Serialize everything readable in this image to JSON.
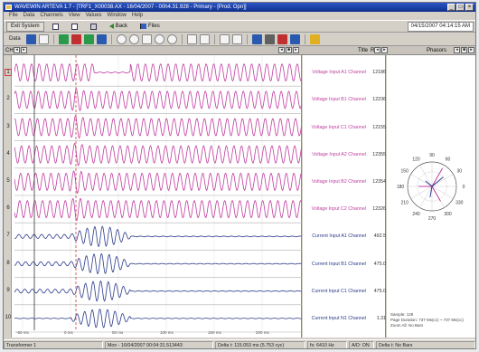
{
  "window": {
    "title": "WAVEWIN ARTEVA 1.7 - [TRF1_X00038.AX - 16/04/2007 - 00h4.31.928 - Primary - [Prod. Opn]]",
    "menu": [
      "File",
      "Data",
      "Channels",
      "View",
      "Values",
      "Window",
      "Help"
    ]
  },
  "toolbar1": {
    "exit_label": "Exit System",
    "back_label": "Back",
    "files_label": "Files",
    "date": "04/15/2007  04:14:15 AM"
  },
  "toolbar2": {
    "data_label": "Data"
  },
  "header": {
    "channel_label": "CH",
    "title_col": "Title",
    "value_col": "R",
    "phasors_label": "Phasors"
  },
  "channels": [
    {
      "number": "1",
      "title": "Voltage Input A1 Channel",
      "value": "12186",
      "type": "voltage"
    },
    {
      "number": "2",
      "title": "Voltage Input B1 Channel",
      "value": "12236",
      "type": "voltage"
    },
    {
      "number": "3",
      "title": "Voltage Input C1 Channel",
      "value": "12155",
      "type": "voltage"
    },
    {
      "number": "4",
      "title": "Voltage Input A2 Channel",
      "value": "12355",
      "type": "voltage"
    },
    {
      "number": "5",
      "title": "Voltage Input B2 Channel",
      "value": "12354",
      "type": "voltage"
    },
    {
      "number": "6",
      "title": "Voltage Input C2 Channel",
      "value": "12326",
      "type": "voltage"
    },
    {
      "number": "7",
      "title": "Current Input A1 Channel",
      "value": "492.5",
      "type": "current"
    },
    {
      "number": "8",
      "title": "Current Input B1 Channel",
      "value": "475.0",
      "type": "current"
    },
    {
      "number": "9",
      "title": "Current Input C1 Channel",
      "value": "475.0",
      "type": "current"
    },
    {
      "number": "10",
      "title": "Current Input N1 Channel",
      "value": "1.31",
      "type": "current"
    }
  ],
  "time_axis": [
    "-50 ms",
    "0 ms",
    "50 ms",
    "100 ms",
    "150 ms",
    "200 ms"
  ],
  "phasor": {
    "angles": [
      "90",
      "60",
      "30",
      "0",
      "330",
      "300",
      "270",
      "240",
      "210",
      "180",
      "150",
      "120"
    ],
    "footer1": "Sample: 128",
    "footer2": "Page Duration: 737 Ms(cc) ~ 737 Ms(cc)",
    "footer3": "Zoom All: No Bars"
  },
  "statusbar": {
    "cell1": "Transformer 1",
    "cell2": "Mon - 16/04/2007 00:04:31.513443",
    "cell3": "Delta t: 115.053 ms  (5.753 cyc)",
    "cell4": "fs: 6410 Hz",
    "cell5": "A/D: ON",
    "cell6": "Delta t: No Bars"
  },
  "colors": {
    "voltage_trace": "#c03ca0",
    "current_trace": "#2a3a8a",
    "cursor": "#d04040"
  }
}
